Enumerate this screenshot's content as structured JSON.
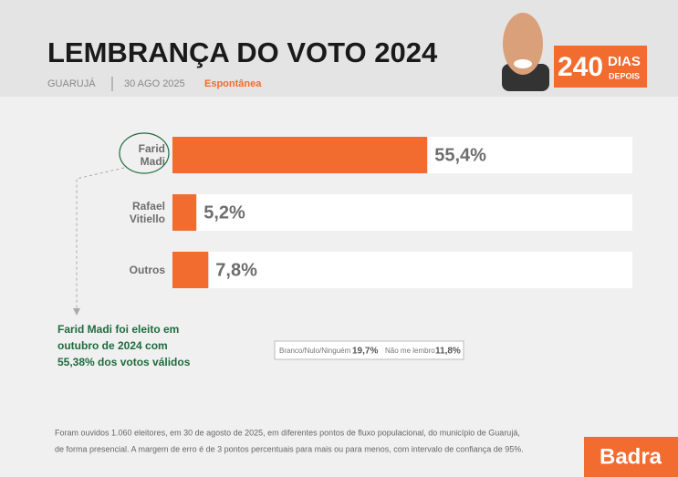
{
  "chart_data": {
    "type": "hbar",
    "title": "LEMBRANÇA DO VOTO 2024",
    "location": "GUARUJÁ",
    "date": "30 AGO 2025",
    "mode": "Espontânea",
    "logo": {
      "number": "240",
      "word1": "DIAS",
      "word2": "DEPOIS"
    },
    "categories": [
      "Farid Madi",
      "Rafael Vitiello",
      "Outros"
    ],
    "values": [
      55.4,
      5.2,
      7.8
    ],
    "value_labels": [
      "55,4%",
      "5,2%",
      "7,8%"
    ],
    "color": "#f26b2f",
    "xlim": [
      0,
      100
    ],
    "annotation": [
      "Farid Madi foi eleito em",
      "outubro de 2024 com",
      "55,38% dos votos válidos"
    ],
    "other_responses": [
      {
        "name": "Branco/Nulo/Ninguém",
        "value": 19.7,
        "label": "19,7%"
      },
      {
        "name": "Não me lembro",
        "value": 11.8,
        "label": "11,8%"
      }
    ],
    "footnote": [
      "Foram ouvidos 1.060 eleitores, em 30 de agosto de 2025, em diferentes pontos de fluxo populacional, do município de Guarujá,",
      "de forma presencial. A margem de erro é de 3 pontos percentuais para mais ou para menos, com intervalo de confiança de 95%."
    ],
    "brand": "Badra"
  }
}
